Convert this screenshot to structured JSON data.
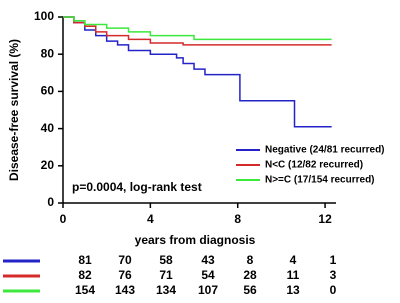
{
  "chart_data": {
    "type": "step",
    "y_label": "Disease-free survival (%)",
    "x_label": "years from diagnosis",
    "annotation": "p=0.0004, log-rank test",
    "xlim": [
      0,
      12.5
    ],
    "xticks": [
      0,
      4,
      8,
      12
    ],
    "ylim": [
      0,
      100
    ],
    "yticks": [
      0,
      20,
      40,
      60,
      80,
      100
    ],
    "legend": "lower right",
    "series": [
      {
        "name": "Negative  (24/81 recurred)",
        "color": "#2323c8",
        "x": [
          0,
          0.5,
          1,
          1.5,
          2,
          2.5,
          3,
          4,
          5.2,
          5.5,
          6,
          6.5,
          8.1,
          10.6,
          12.3
        ],
        "values": [
          100,
          97,
          93,
          90,
          87,
          85,
          82,
          80,
          78,
          75,
          72,
          69,
          55,
          41,
          41
        ]
      },
      {
        "name": "N<C (12/82 recurred)",
        "color": "#d42a2a",
        "x": [
          0,
          0.5,
          1,
          1.5,
          2,
          3,
          4,
          5.5,
          12.3
        ],
        "values": [
          100,
          97,
          95,
          92,
          90,
          88,
          86,
          85,
          85
        ]
      },
      {
        "name": "N>=C (17/154 recurred)",
        "color": "#3ce83c",
        "x": [
          0,
          0.5,
          1,
          2,
          3,
          4,
          6,
          12.3
        ],
        "values": [
          100,
          98,
          96,
          94,
          92,
          90,
          88,
          88
        ]
      }
    ],
    "number_at_risk": [
      {
        "color": "#2323c8",
        "values": [
          81,
          70,
          58,
          43,
          8,
          4,
          1
        ]
      },
      {
        "color": "#d42a2a",
        "values": [
          82,
          76,
          71,
          54,
          28,
          11,
          3
        ]
      },
      {
        "color": "#3ce83c",
        "values": [
          154,
          143,
          134,
          107,
          56,
          13,
          0
        ]
      }
    ]
  }
}
